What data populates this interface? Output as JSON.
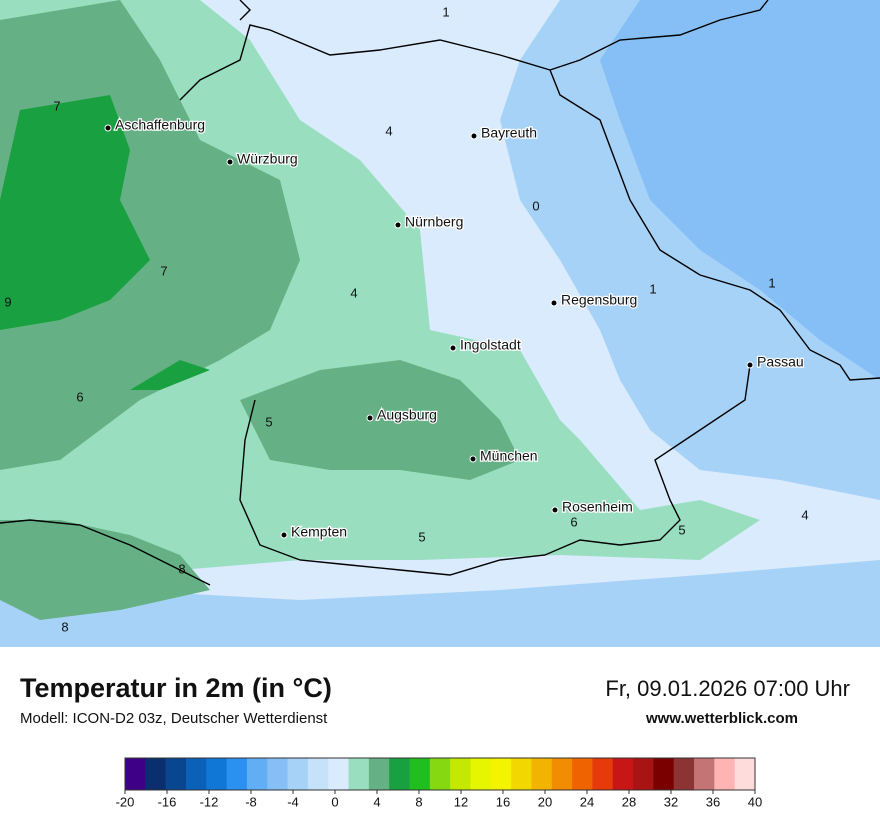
{
  "map": {
    "cities": [
      "Aschaffenburg",
      "Würzburg",
      "Bayreuth",
      "Nürnberg",
      "Regensburg",
      "Ingolstadt",
      "Passau",
      "Augsburg",
      "München",
      "Rosenheim",
      "Kempten"
    ],
    "isotherm_labels": [
      1,
      7,
      4,
      0,
      7,
      4,
      1,
      1,
      9,
      6,
      5,
      6,
      5,
      4,
      5,
      8,
      8
    ]
  },
  "header": {
    "title": "Temperatur in 2m (in °C)",
    "model": "Modell: ICON-D2 03z, Deutscher Wetterdienst",
    "datetime": "Fr, 09.01.2026 07:00 Uhr",
    "website": "www.wetterblick.com"
  },
  "legend": {
    "colors": [
      "#3d0087",
      "#0b2f6e",
      "#08468f",
      "#0b60b8",
      "#1177d6",
      "#2b90f0",
      "#62aef5",
      "#85bff5",
      "#a7d2f7",
      "#c6e2fb",
      "#d9ebfd",
      "#99dfbf",
      "#66b085",
      "#19a040",
      "#20be1e",
      "#86d810",
      "#c4e800",
      "#e6f500",
      "#f5f400",
      "#f3d800",
      "#f2b400",
      "#f28c00",
      "#f06400",
      "#e63a0b",
      "#c81616",
      "#a81414",
      "#7a0000",
      "#8c3434",
      "#c47474",
      "#ffb4b4",
      "#ffdcdc"
    ],
    "ticks": [
      -20,
      -16,
      -12,
      -8,
      -4,
      0,
      4,
      8,
      12,
      16,
      20,
      24,
      28,
      32,
      36,
      40
    ]
  }
}
